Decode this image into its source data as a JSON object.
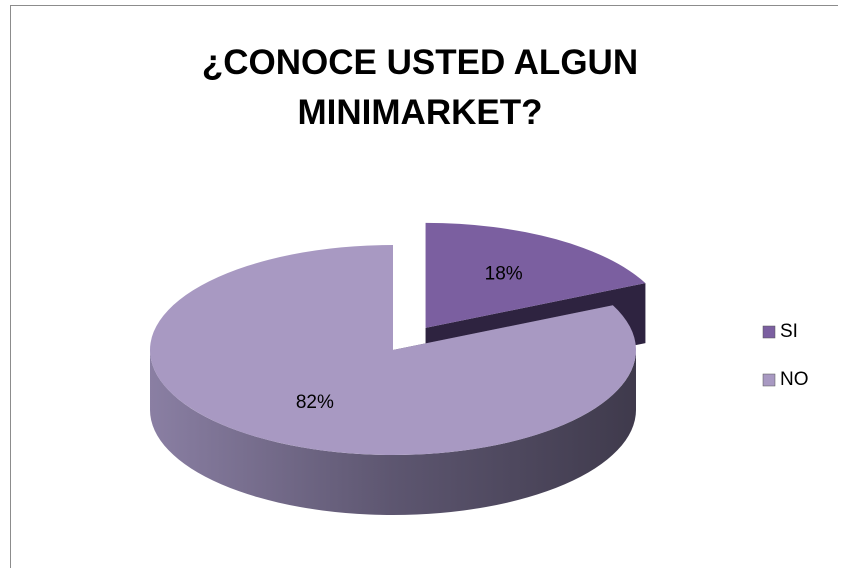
{
  "chart_data": {
    "type": "pie",
    "title": "¿CONOCE USTED ALGUN MINIMARKET?",
    "categories": [
      "SI",
      "NO"
    ],
    "values": [
      18,
      82
    ],
    "value_labels": [
      "18%",
      "82%"
    ],
    "colors": [
      "#7b5fa0",
      "#a899c2"
    ],
    "legend": "right"
  }
}
